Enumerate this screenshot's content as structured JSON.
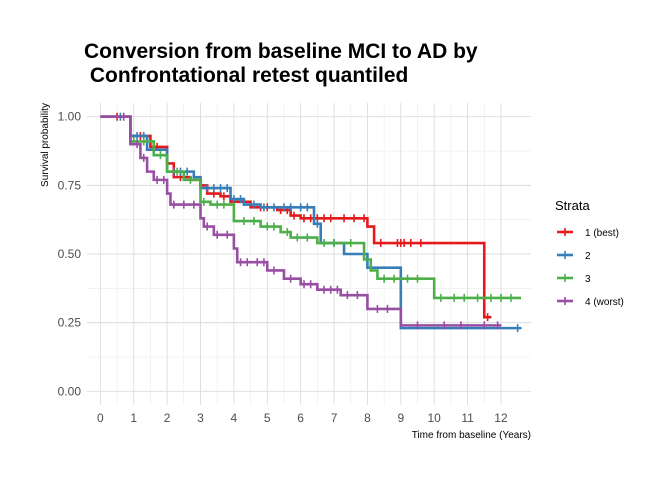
{
  "chart_data": {
    "type": "line",
    "subtype": "kaplan-meier step",
    "title_line1": "Conversion from baseline MCI to AD by",
    "title_line2": " Confrontational retest quantiled",
    "xlabel": "Time from baseline (Years)",
    "ylabel": "Survival probability",
    "xlim": [
      -0.4,
      12.9
    ],
    "ylim": [
      -0.05,
      1.05
    ],
    "xticks": [
      0,
      1,
      2,
      3,
      4,
      5,
      6,
      7,
      8,
      9,
      10,
      11,
      12
    ],
    "yticks": [
      0,
      0.25,
      0.5,
      0.75,
      1
    ],
    "ytick_labels": [
      "0.00",
      "0.25",
      "0.50",
      "0.75",
      "1.00"
    ],
    "grid": true,
    "legend": {
      "title": "Strata",
      "position": "right"
    },
    "series": [
      {
        "name": "1 (best)",
        "color": "#e41a1c",
        "steps": [
          [
            0,
            1.0
          ],
          [
            0.9,
            0.93
          ],
          [
            1.5,
            0.89
          ],
          [
            2.0,
            0.83
          ],
          [
            2.2,
            0.78
          ],
          [
            2.7,
            0.77
          ],
          [
            3.0,
            0.75
          ],
          [
            3.2,
            0.72
          ],
          [
            3.6,
            0.71
          ],
          [
            3.9,
            0.69
          ],
          [
            4.5,
            0.67
          ],
          [
            5.3,
            0.66
          ],
          [
            5.7,
            0.64
          ],
          [
            6.0,
            0.63
          ],
          [
            8.0,
            0.6
          ],
          [
            8.2,
            0.54
          ],
          [
            11.5,
            0.27
          ],
          [
            11.7,
            0.27
          ]
        ],
        "censor": [
          0.5,
          1.2,
          1.7,
          2.4,
          3.4,
          3.7,
          4.3,
          4.8,
          5.0,
          5.4,
          5.6,
          5.8,
          6.1,
          6.3,
          6.5,
          6.7,
          6.9,
          7.3,
          7.6,
          7.9,
          8.4,
          8.9,
          9.0,
          9.1,
          9.3,
          9.6,
          11.6
        ]
      },
      {
        "name": "2",
        "color": "#377eb8",
        "steps": [
          [
            0,
            1.0
          ],
          [
            0.9,
            0.93
          ],
          [
            1.4,
            0.88
          ],
          [
            2.0,
            0.8
          ],
          [
            2.8,
            0.78
          ],
          [
            3.0,
            0.74
          ],
          [
            3.9,
            0.7
          ],
          [
            4.3,
            0.68
          ],
          [
            4.8,
            0.67
          ],
          [
            6.4,
            0.61
          ],
          [
            6.6,
            0.54
          ],
          [
            7.3,
            0.5
          ],
          [
            8.0,
            0.45
          ],
          [
            9.0,
            0.23
          ],
          [
            12.6,
            0.23
          ]
        ],
        "censor": [
          0.6,
          1.1,
          1.3,
          1.6,
          2.2,
          2.4,
          2.6,
          3.2,
          3.4,
          3.6,
          3.8,
          4.0,
          4.2,
          4.6,
          4.9,
          5.2,
          5.5,
          5.7,
          6.0,
          6.2,
          6.5,
          7.0,
          12.5
        ]
      },
      {
        "name": "3",
        "color": "#4daf4a",
        "steps": [
          [
            0,
            1.0
          ],
          [
            0.9,
            0.91
          ],
          [
            1.6,
            0.86
          ],
          [
            2.0,
            0.8
          ],
          [
            2.5,
            0.77
          ],
          [
            3.0,
            0.69
          ],
          [
            3.3,
            0.68
          ],
          [
            4.0,
            0.62
          ],
          [
            4.8,
            0.6
          ],
          [
            5.4,
            0.58
          ],
          [
            5.7,
            0.56
          ],
          [
            6.5,
            0.54
          ],
          [
            7.9,
            0.48
          ],
          [
            8.1,
            0.44
          ],
          [
            8.3,
            0.41
          ],
          [
            10.0,
            0.34
          ],
          [
            12.6,
            0.34
          ]
        ],
        "censor": [
          1.0,
          1.3,
          1.8,
          2.3,
          2.7,
          3.1,
          3.5,
          3.7,
          4.3,
          4.6,
          5.0,
          5.2,
          5.6,
          5.9,
          6.2,
          6.7,
          7.0,
          7.5,
          8.5,
          8.8,
          9.2,
          9.5,
          10.2,
          10.6,
          10.9,
          11.3,
          11.7,
          12.0,
          12.3
        ]
      },
      {
        "name": "4 (worst)",
        "color": "#984ea3",
        "steps": [
          [
            0,
            1.0
          ],
          [
            0.9,
            0.9
          ],
          [
            1.2,
            0.85
          ],
          [
            1.4,
            0.8
          ],
          [
            1.6,
            0.77
          ],
          [
            2.0,
            0.72
          ],
          [
            2.1,
            0.68
          ],
          [
            3.0,
            0.63
          ],
          [
            3.1,
            0.6
          ],
          [
            3.4,
            0.57
          ],
          [
            4.0,
            0.52
          ],
          [
            4.1,
            0.47
          ],
          [
            5.0,
            0.44
          ],
          [
            5.5,
            0.41
          ],
          [
            6.0,
            0.39
          ],
          [
            6.5,
            0.37
          ],
          [
            7.2,
            0.35
          ],
          [
            8.0,
            0.3
          ],
          [
            9.0,
            0.24
          ],
          [
            12.0,
            0.24
          ]
        ],
        "censor": [
          0.7,
          1.1,
          1.3,
          1.7,
          1.9,
          2.2,
          2.5,
          2.8,
          3.2,
          3.5,
          3.8,
          4.2,
          4.4,
          4.7,
          4.9,
          5.2,
          5.7,
          6.1,
          6.3,
          6.7,
          6.9,
          7.1,
          7.4,
          7.7,
          8.3,
          8.6,
          9.5,
          10.3,
          10.8,
          11.5,
          11.9
        ]
      }
    ]
  }
}
